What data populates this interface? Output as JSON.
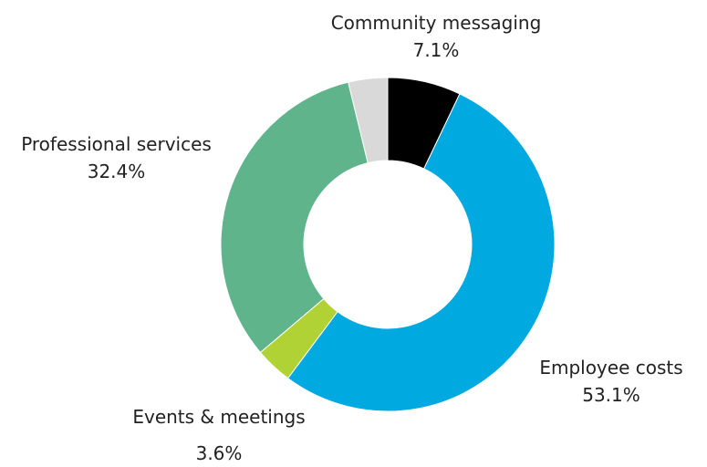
{
  "chart_data": {
    "type": "pie",
    "variant": "donut",
    "start_angle_deg": 0,
    "direction": "clockwise",
    "slices": [
      {
        "label": "Community messaging",
        "value": 7.1,
        "value_label": "7.1%",
        "color": "#000000"
      },
      {
        "label": "Employee costs",
        "value": 53.1,
        "value_label": "53.1%",
        "color": "#00a9e0"
      },
      {
        "label": "Events & meetings",
        "value": 3.6,
        "value_label": "3.6%",
        "color": "#b1d235"
      },
      {
        "label": "Professional services",
        "value": 32.4,
        "value_label": "32.4%",
        "color": "#5fb48c"
      },
      {
        "label": "",
        "value": 3.8,
        "value_label": "",
        "color": "#d9d9d9"
      }
    ]
  }
}
